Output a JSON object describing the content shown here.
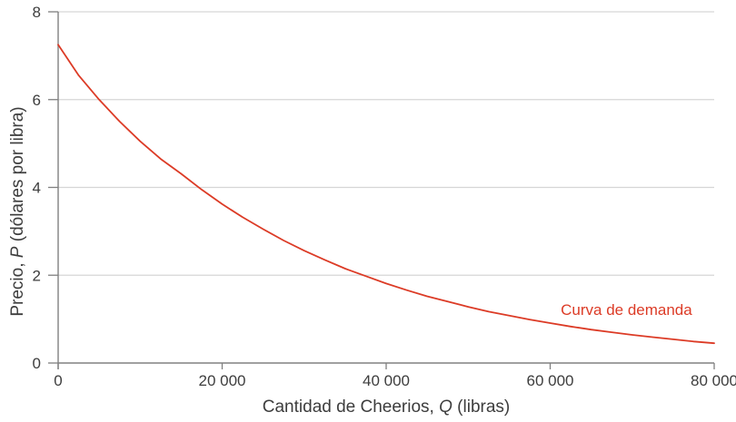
{
  "chart_data": {
    "type": "line",
    "title": "",
    "xlabel": "Cantidad de Cheerios, Q (libras)",
    "ylabel": "Precio, P (dólares por libra)",
    "xlabel_parts": {
      "prefix": "Cantidad de Cheerios, ",
      "variable": "Q",
      "suffix": " (libras)"
    },
    "ylabel_parts": {
      "prefix": "Precio, ",
      "variable": "P",
      "suffix": " (dólares por libra)"
    },
    "xlim": [
      0,
      80000
    ],
    "ylim": [
      0,
      8
    ],
    "x_ticks": [
      {
        "value": 0,
        "label": "0"
      },
      {
        "value": 20000,
        "label": "20 000"
      },
      {
        "value": 40000,
        "label": "40 000"
      },
      {
        "value": 60000,
        "label": "60 000"
      },
      {
        "value": 80000,
        "label": "80 000"
      }
    ],
    "y_ticks": [
      {
        "value": 0,
        "label": "0"
      },
      {
        "value": 2,
        "label": "2"
      },
      {
        "value": 4,
        "label": "4"
      },
      {
        "value": 6,
        "label": "6"
      },
      {
        "value": 8,
        "label": "8"
      }
    ],
    "grid": "horizontal",
    "legend_position": "none",
    "series": [
      {
        "name": "Curva de demanda",
        "color": "#dc3b26",
        "x": [
          0,
          2500,
          5000,
          7500,
          10000,
          12500,
          15000,
          17500,
          20000,
          22500,
          25000,
          27500,
          30000,
          32500,
          35000,
          37500,
          40000,
          42500,
          45000,
          47500,
          50000,
          52500,
          55000,
          57500,
          60000,
          62500,
          65000,
          67500,
          70000,
          72500,
          75000,
          77500,
          80000
        ],
        "y": [
          7.25,
          6.55,
          6.0,
          5.5,
          5.05,
          4.65,
          4.31,
          3.95,
          3.62,
          3.32,
          3.05,
          2.79,
          2.56,
          2.35,
          2.15,
          1.98,
          1.81,
          1.66,
          1.52,
          1.4,
          1.28,
          1.17,
          1.08,
          0.99,
          0.91,
          0.83,
          0.76,
          0.7,
          0.64,
          0.59,
          0.54,
          0.49,
          0.45
        ]
      }
    ],
    "annotations": [
      {
        "text": "Curva de demanda",
        "x": 69300,
        "y": 1.2,
        "color": "#dc3b26"
      }
    ],
    "colors": {
      "curve": "#dc3b26",
      "axis": "#808080",
      "grid": "#d6d6d6",
      "text": "#3d3d3d"
    }
  }
}
